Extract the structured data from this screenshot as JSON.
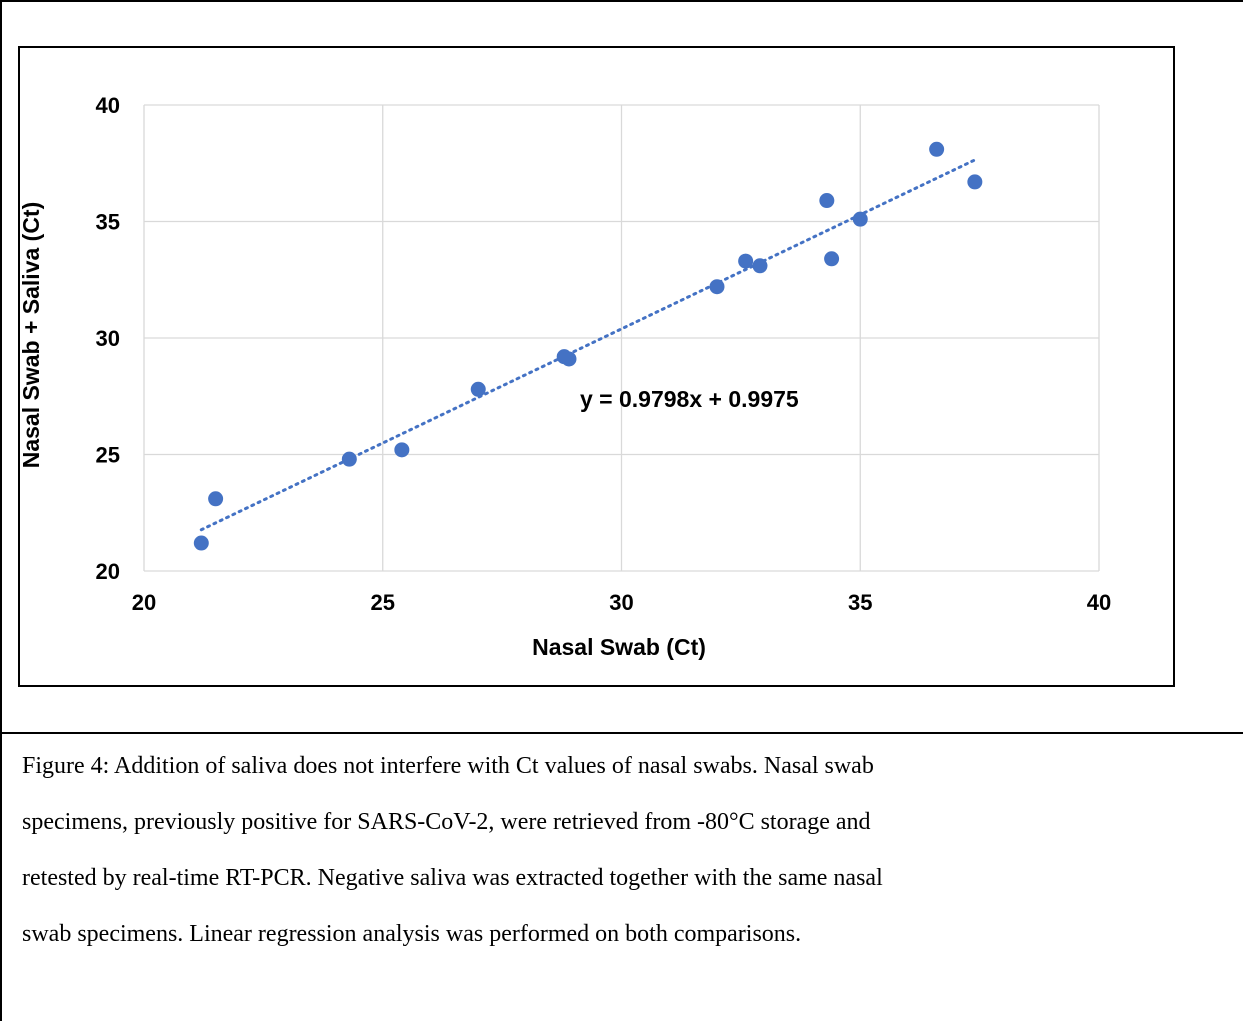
{
  "chart_data": {
    "type": "scatter",
    "xlabel": "Nasal Swab (Ct)",
    "ylabel": "Nasal Swab + Saliva (Ct)",
    "xlim": [
      20,
      40
    ],
    "ylim": [
      20,
      40
    ],
    "xticks": [
      20,
      25,
      30,
      35,
      40
    ],
    "yticks": [
      20,
      25,
      30,
      35,
      40
    ],
    "grid": true,
    "points": [
      {
        "x": 21.2,
        "y": 21.2
      },
      {
        "x": 21.5,
        "y": 23.1
      },
      {
        "x": 24.3,
        "y": 24.8
      },
      {
        "x": 25.4,
        "y": 25.2
      },
      {
        "x": 27.0,
        "y": 27.8
      },
      {
        "x": 28.8,
        "y": 29.2
      },
      {
        "x": 28.9,
        "y": 29.1
      },
      {
        "x": 32.0,
        "y": 32.2
      },
      {
        "x": 32.6,
        "y": 33.3
      },
      {
        "x": 32.9,
        "y": 33.1
      },
      {
        "x": 34.3,
        "y": 35.9
      },
      {
        "x": 34.4,
        "y": 33.4
      },
      {
        "x": 35.0,
        "y": 35.1
      },
      {
        "x": 36.6,
        "y": 38.1
      },
      {
        "x": 37.4,
        "y": 36.7
      }
    ],
    "trendline": {
      "equation": "y = 0.9798x + 0.9975",
      "slope": 0.9798,
      "intercept": 0.9975,
      "x_range": [
        21.2,
        37.4
      ],
      "style": "dotted"
    },
    "colors": {
      "marker": "#4472C4",
      "trendline": "#4472C4",
      "grid": "#D9D9D9"
    }
  },
  "caption": {
    "lines": [
      "Figure 4: Addition of saliva does not interfere with Ct values of nasal swabs. Nasal swab",
      "specimens, previously positive for SARS-CoV-2, were retrieved from -80°C storage and",
      "retested by real-time RT-PCR.  Negative saliva was extracted together with the same nasal",
      "swab specimens.  Linear regression analysis was performed on both comparisons."
    ]
  }
}
